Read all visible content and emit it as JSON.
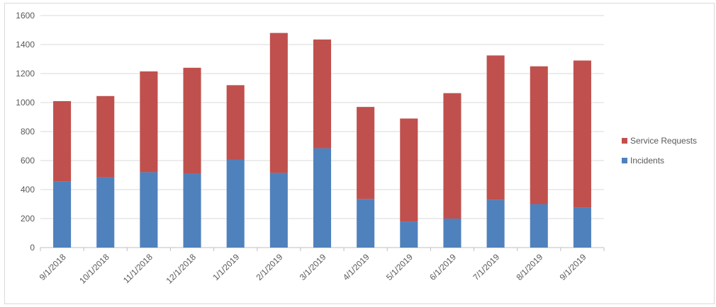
{
  "chart_data": {
    "type": "bar",
    "stacked": true,
    "categories": [
      "9/1/2018",
      "10/1/2018",
      "11/1/2018",
      "12/1/2018",
      "1/1/2019",
      "2/1/2019",
      "3/1/2019",
      "4/1/2019",
      "5/1/2019",
      "6/1/2019",
      "7/1/2019",
      "8/1/2019",
      "9/1/2019"
    ],
    "series": [
      {
        "name": "Incidents",
        "color": "#4F81BD",
        "values": [
          455,
          485,
          520,
          510,
          605,
          515,
          685,
          335,
          180,
          200,
          330,
          300,
          275
        ]
      },
      {
        "name": "Service Requests",
        "color": "#C0504D",
        "values": [
          555,
          560,
          695,
          730,
          515,
          965,
          750,
          635,
          710,
          865,
          995,
          950,
          1015
        ]
      }
    ],
    "title": "",
    "xlabel": "",
    "ylabel": "",
    "ylim": [
      0,
      1600
    ],
    "yticks": [
      "0",
      "200",
      "400",
      "600",
      "800",
      "1000",
      "1200",
      "1400",
      "1600"
    ],
    "grid": true,
    "legend_position": "right",
    "legend_order": [
      "Service Requests",
      "Incidents"
    ],
    "gridline_color": "#D9D9D9",
    "axis_color": "#BFBFBF",
    "text_color": "#595959"
  }
}
